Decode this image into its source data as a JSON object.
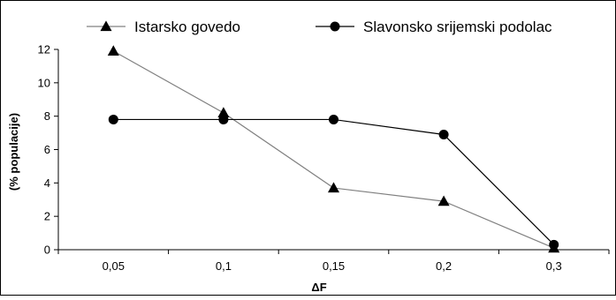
{
  "chart_data": {
    "type": "line",
    "title": "",
    "xlabel": "ΔF",
    "ylabel": "(% populacije)",
    "categories": [
      "0,05",
      "0,1",
      "0,15",
      "0,2",
      "0,3"
    ],
    "ylim": [
      0,
      12
    ],
    "yticks": [
      0,
      2,
      4,
      6,
      8,
      10,
      12
    ],
    "grid": false,
    "legend": "top",
    "series": [
      {
        "name": "Istarsko govedo",
        "marker": "triangle",
        "color": "#808080",
        "marker_color": "#000000",
        "values": [
          11.9,
          8.2,
          3.7,
          2.9,
          0.1
        ]
      },
      {
        "name": "Slavonsko srijemski podolac",
        "marker": "circle",
        "color": "#000000",
        "marker_color": "#000000",
        "values": [
          7.8,
          7.8,
          7.8,
          6.9,
          0.3
        ]
      }
    ]
  }
}
